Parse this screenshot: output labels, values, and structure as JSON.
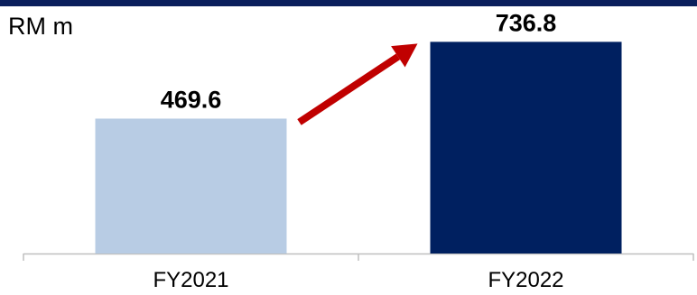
{
  "unit_label": "RM m",
  "colors": {
    "band": "#0a1f5c",
    "axis": "#bfbfbf",
    "arrow": "#c00000"
  },
  "chart_data": {
    "type": "bar",
    "categories": [
      "FY2021",
      "FY2022"
    ],
    "values": [
      469.6,
      736.8
    ],
    "value_labels": [
      "469.6",
      "736.8"
    ],
    "bar_colors": [
      "#b8cce4",
      "#002060"
    ],
    "ylim": [
      0,
      760
    ],
    "grid": false,
    "legend": "none",
    "annotations": [
      {
        "type": "growth-arrow",
        "from_category": "FY2021",
        "to_category": "FY2022"
      }
    ]
  }
}
